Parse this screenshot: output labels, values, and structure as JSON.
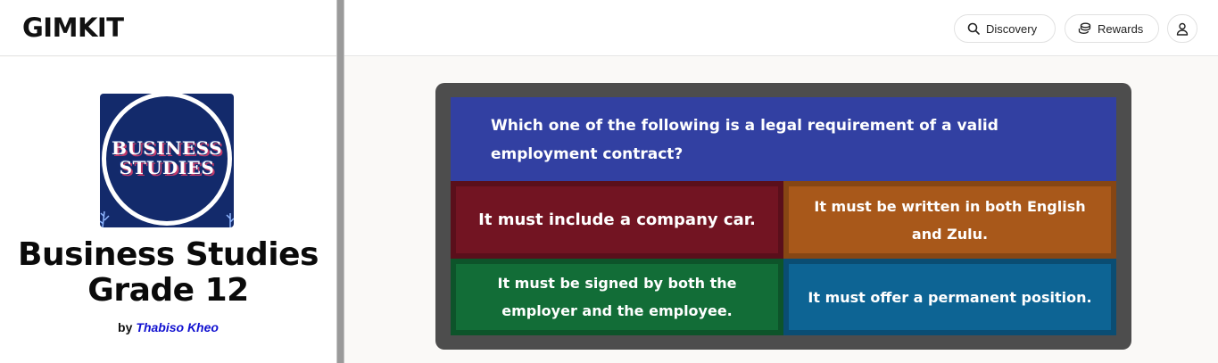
{
  "header": {
    "logo": "GIMKIT",
    "discovery_label": "Discovery",
    "rewards_label": "Rewards"
  },
  "kit": {
    "cover_line1": "BUSINESS",
    "cover_line2": "STUDIES",
    "title_line1": "Business Studies",
    "title_line2": "Grade 12",
    "by_label": "by",
    "author": "Thabiso Kheo"
  },
  "question": {
    "line1": "Which one of the following is a legal requirement of a valid",
    "line2": "employment contract?",
    "answers": [
      {
        "line1": "It must include a company car.",
        "line2": ""
      },
      {
        "line1": "It must be written in both English",
        "line2": "and Zulu."
      },
      {
        "line1": "It must be signed by both the",
        "line2": "employer and the employee."
      },
      {
        "line1": "It must offer a permanent position.",
        "line2": ""
      }
    ]
  },
  "colors": {
    "question_bg": "#3240a2",
    "answer_red": "#721422",
    "answer_orange": "#a8581a",
    "answer_green": "#126d37",
    "answer_blue": "#0d6494",
    "author_link": "#1010d0"
  }
}
